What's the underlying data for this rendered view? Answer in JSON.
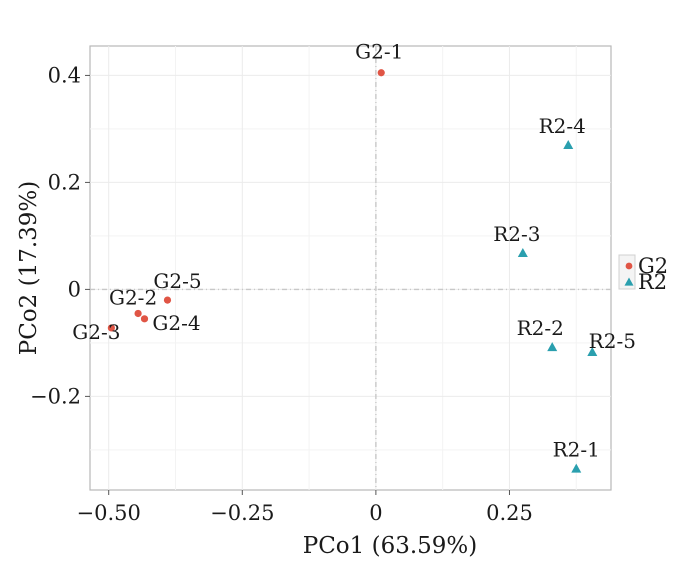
{
  "chart_data": {
    "type": "scatter",
    "xlabel": "PCo1 (63.59%)",
    "ylabel": "PCo2 (17.39%)",
    "xlim": [
      -0.535,
      0.44
    ],
    "ylim": [
      -0.375,
      0.455
    ],
    "x_ticks": [
      {
        "value": -0.5,
        "label": "−0.50"
      },
      {
        "value": -0.25,
        "label": "−0.25"
      },
      {
        "value": 0,
        "label": "0"
      },
      {
        "value": 0.25,
        "label": "0.25"
      }
    ],
    "y_ticks": [
      {
        "value": 0.4,
        "label": "0.4"
      },
      {
        "value": 0.2,
        "label": "0.2"
      },
      {
        "value": 0,
        "label": "0"
      },
      {
        "value": -0.2,
        "label": "−0.2"
      }
    ],
    "grid": true,
    "zero_lines": true,
    "legend_position": "right",
    "series": [
      {
        "name": "G2",
        "marker": "circle",
        "color": "#e05545",
        "points": [
          {
            "label": "G2-1",
            "x": 0.01,
            "y": 0.405
          },
          {
            "label": "G2-2",
            "x": -0.445,
            "y": -0.045
          },
          {
            "label": "G2-3",
            "x": -0.495,
            "y": -0.072
          },
          {
            "label": "G2-4",
            "x": -0.433,
            "y": -0.055
          },
          {
            "label": "G2-5",
            "x": -0.39,
            "y": -0.02
          }
        ]
      },
      {
        "name": "R2",
        "marker": "triangle",
        "color": "#2a9fae",
        "points": [
          {
            "label": "R2-1",
            "x": 0.375,
            "y": -0.335
          },
          {
            "label": "R2-2",
            "x": 0.33,
            "y": -0.108
          },
          {
            "label": "R2-3",
            "x": 0.275,
            "y": 0.068
          },
          {
            "label": "R2-4",
            "x": 0.36,
            "y": 0.27
          },
          {
            "label": "R2-5",
            "x": 0.405,
            "y": -0.117
          }
        ]
      }
    ]
  }
}
